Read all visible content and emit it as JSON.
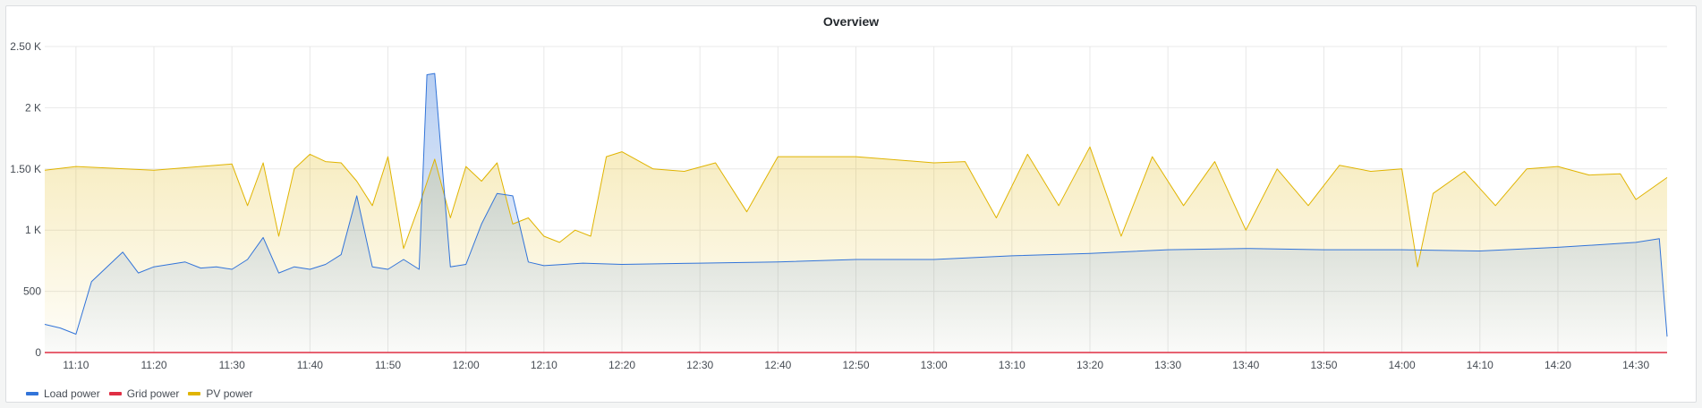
{
  "panel": {
    "title": "Overview"
  },
  "colors": {
    "load": "#3274d9",
    "grid": "#e02f44",
    "pv": "#e0b400",
    "grid_lines": "#e8e8e8"
  },
  "chart_data": {
    "type": "area",
    "title": "Overview",
    "x_unit": "time",
    "x_start": "11:06",
    "x_end": "14:34",
    "ylim": [
      0,
      2500
    ],
    "y_ticks": [
      {
        "value": 0,
        "label": "0"
      },
      {
        "value": 500,
        "label": "500"
      },
      {
        "value": 1000,
        "label": "1 K"
      },
      {
        "value": 1500,
        "label": "1.50 K"
      },
      {
        "value": 2000,
        "label": "2 K"
      },
      {
        "value": 2500,
        "label": "2.50 K"
      }
    ],
    "x_ticks": [
      "11:10",
      "11:20",
      "11:30",
      "11:40",
      "11:50",
      "12:00",
      "12:10",
      "12:20",
      "12:30",
      "12:40",
      "12:50",
      "13:00",
      "13:10",
      "13:20",
      "13:30",
      "13:40",
      "13:50",
      "14:00",
      "14:10",
      "14:20",
      "14:30"
    ],
    "grid": true,
    "legend_placement": "bottom-left",
    "series": [
      {
        "name": "Load power",
        "color": "#3274d9",
        "x": [
          "11:06",
          "11:08",
          "11:10",
          "11:12",
          "11:14",
          "11:16",
          "11:18",
          "11:20",
          "11:22",
          "11:24",
          "11:26",
          "11:28",
          "11:30",
          "11:32",
          "11:34",
          "11:36",
          "11:38",
          "11:40",
          "11:42",
          "11:44",
          "11:46",
          "11:48",
          "11:50",
          "11:52",
          "11:54",
          "11:55",
          "11:56",
          "11:58",
          "12:00",
          "12:02",
          "12:04",
          "12:06",
          "12:08",
          "12:10",
          "12:15",
          "12:20",
          "12:30",
          "12:40",
          "12:50",
          "13:00",
          "13:10",
          "13:20",
          "13:30",
          "13:40",
          "13:50",
          "14:00",
          "14:10",
          "14:20",
          "14:30",
          "14:33",
          "14:34"
        ],
        "values": [
          230,
          200,
          150,
          580,
          700,
          820,
          650,
          700,
          720,
          740,
          690,
          700,
          680,
          760,
          940,
          650,
          700,
          680,
          720,
          800,
          1280,
          700,
          680,
          760,
          680,
          2270,
          2280,
          700,
          720,
          1050,
          1300,
          1280,
          740,
          710,
          730,
          720,
          730,
          740,
          760,
          760,
          790,
          810,
          840,
          850,
          840,
          840,
          830,
          860,
          900,
          930,
          130
        ],
        "fill_opacity": 0.25
      },
      {
        "name": "Grid power",
        "color": "#e02f44",
        "x": [
          "11:06",
          "14:34"
        ],
        "values": [
          0,
          0
        ],
        "fill_opacity": 0
      },
      {
        "name": "PV power",
        "color": "#e0b400",
        "x": [
          "11:06",
          "11:10",
          "11:20",
          "11:30",
          "11:32",
          "11:34",
          "11:36",
          "11:38",
          "11:40",
          "11:42",
          "11:44",
          "11:46",
          "11:48",
          "11:50",
          "11:52",
          "11:54",
          "11:56",
          "11:58",
          "12:00",
          "12:02",
          "12:04",
          "12:06",
          "12:08",
          "12:10",
          "12:12",
          "12:14",
          "12:16",
          "12:18",
          "12:20",
          "12:24",
          "12:28",
          "12:32",
          "12:36",
          "12:40",
          "12:50",
          "13:00",
          "13:04",
          "13:08",
          "13:12",
          "13:16",
          "13:20",
          "13:24",
          "13:28",
          "13:32",
          "13:36",
          "13:40",
          "13:44",
          "13:48",
          "13:52",
          "13:56",
          "14:00",
          "14:02",
          "14:04",
          "14:08",
          "14:12",
          "14:16",
          "14:20",
          "14:24",
          "14:28",
          "14:30",
          "14:34"
        ],
        "values": [
          1490,
          1520,
          1490,
          1540,
          1200,
          1550,
          950,
          1500,
          1620,
          1560,
          1550,
          1400,
          1200,
          1600,
          850,
          1200,
          1580,
          1100,
          1520,
          1400,
          1550,
          1050,
          1100,
          950,
          900,
          1000,
          950,
          1600,
          1640,
          1500,
          1480,
          1550,
          1150,
          1600,
          1600,
          1550,
          1560,
          1100,
          1620,
          1200,
          1680,
          950,
          1600,
          1200,
          1560,
          1000,
          1500,
          1200,
          1530,
          1480,
          1500,
          700,
          1300,
          1480,
          1200,
          1500,
          1520,
          1450,
          1460,
          1250,
          1430
        ],
        "fill_opacity": 0.15
      }
    ]
  }
}
